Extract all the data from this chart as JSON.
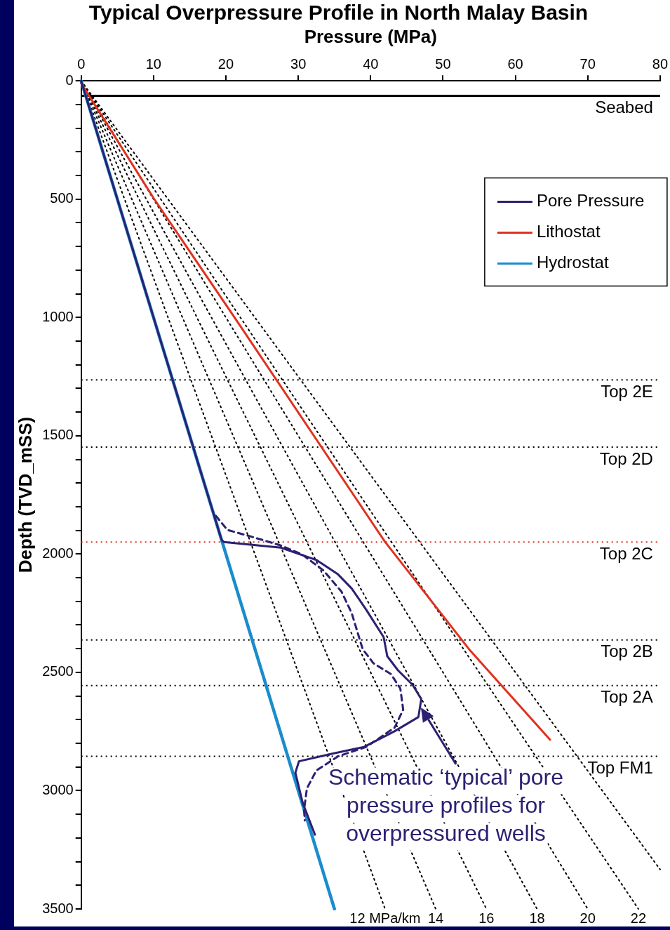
{
  "chart_data": {
    "type": "line",
    "title": "Typical Overpressure Profile in North Malay Basin",
    "xlabel": "Pressure (MPa)",
    "ylabel": "Depth (TVD_mSS)",
    "xlim": [
      0,
      80
    ],
    "xticks": [
      0,
      10,
      20,
      30,
      40,
      50,
      60,
      70,
      80
    ],
    "ylim": [
      3500,
      0
    ],
    "yticks": [
      0,
      {
        "value": 100,
        "label": null
      },
      {
        "value": 200,
        "label": null
      },
      {
        "value": 300,
        "label": null
      },
      {
        "value": 400,
        "label": null
      },
      500,
      {
        "value": 600,
        "label": null
      },
      {
        "value": 700,
        "label": null
      },
      {
        "value": 800,
        "label": null
      },
      {
        "value": 900,
        "label": null
      },
      1000,
      {
        "value": 1100,
        "label": null
      },
      {
        "value": 1200,
        "label": null
      },
      {
        "value": 1300,
        "label": null
      },
      {
        "value": 1400,
        "label": null
      },
      1500,
      {
        "value": 1600,
        "label": null
      },
      {
        "value": 1700,
        "label": null
      },
      {
        "value": 1800,
        "label": null
      },
      {
        "value": 1900,
        "label": null
      },
      2000,
      {
        "value": 2100,
        "label": null
      },
      {
        "value": 2200,
        "label": null
      },
      {
        "value": 2300,
        "label": null
      },
      {
        "value": 2400,
        "label": null
      },
      2500,
      {
        "value": 2600,
        "label": null
      },
      {
        "value": 2700,
        "label": null
      },
      {
        "value": 2800,
        "label": null
      },
      {
        "value": 2900,
        "label": null
      },
      3000,
      {
        "value": 3100,
        "label": null
      },
      {
        "value": 3200,
        "label": null
      },
      {
        "value": 3300,
        "label": null
      },
      {
        "value": 3400,
        "label": null
      },
      3500
    ],
    "grid": false,
    "legend": "top right",
    "marker": "none",
    "series": [
      {
        "name": "Pore Pressure",
        "color": "#2b2172",
        "line_style": "solid",
        "x": [
          0,
          19.4,
          19.7,
          27.6,
          32.5,
          35.5,
          37.4,
          39.4,
          41.8,
          42.3,
          43.8,
          45.8,
          47.0,
          46.6,
          43.3,
          39.1,
          34.5,
          30.1,
          29.6,
          30.6,
          32.3
        ],
        "values": [
          0,
          1940,
          1949,
          1973,
          2025,
          2086,
          2146,
          2236,
          2351,
          2432,
          2492,
          2553,
          2613,
          2689,
          2749,
          2815,
          2845,
          2876,
          2924,
          3051,
          3186
        ]
      },
      {
        "color": "#2b2172",
        "line_style": "dashed",
        "x": [
          18.6,
          20.2,
          23.7,
          27.6,
          30.5,
          33.5,
          36.0,
          37.4,
          38.9,
          40.4,
          42.8,
          44.1,
          44.5,
          43.3,
          39.4,
          35.5,
          32.5,
          31.2,
          30.8,
          30.9
        ],
        "values": [
          1838,
          1898,
          1928,
          1964,
          2001,
          2070,
          2160,
          2251,
          2402,
          2462,
          2507,
          2568,
          2658,
          2734,
          2815,
          2855,
          2915,
          2990,
          3081,
          3126
        ]
      },
      {
        "name": "Lithostat",
        "color": "#e0321e",
        "line_style": "solid",
        "x": [
          0,
          10.1,
          21.2,
          42.0,
          53.6,
          64.8
        ],
        "values": [
          10,
          500,
          1000,
          1949,
          2402,
          2785
        ]
      },
      {
        "name": "Hydrostat",
        "color": "#1a8ccc",
        "line_style": "solid",
        "x": [
          0,
          35
        ],
        "values": [
          0,
          3500
        ]
      },
      {
        "color": "#000000",
        "line_style": "dotted",
        "x": [
          0,
          42
        ],
        "values": [
          0,
          3500
        ]
      },
      {
        "color": "#000000",
        "line_style": "dotted",
        "x": [
          0,
          49
        ],
        "values": [
          0,
          3500
        ]
      },
      {
        "color": "#000000",
        "line_style": "dotted",
        "x": [
          0,
          56
        ],
        "values": [
          0,
          3500
        ]
      },
      {
        "color": "#000000",
        "line_style": "dotted",
        "x": [
          0,
          63
        ],
        "values": [
          0,
          3500
        ]
      },
      {
        "color": "#000000",
        "line_style": "dotted",
        "x": [
          0,
          70
        ],
        "values": [
          0,
          3500
        ]
      },
      {
        "color": "#000000",
        "line_style": "dotted",
        "x": [
          0,
          77
        ],
        "values": [
          0,
          3500
        ]
      },
      {
        "color": "#000000",
        "line_style": "dotted",
        "x": [
          0,
          80
        ],
        "values": [
          0,
          3333
        ]
      }
    ],
    "ref_lines": [
      {
        "axis": "y",
        "value": 63,
        "label": "Seabed",
        "color": "#000000",
        "line_style": "solid"
      },
      {
        "axis": "y",
        "value": 1264,
        "label": "Top 2E",
        "color": "#000000",
        "line_style": "dotted"
      },
      {
        "axis": "y",
        "value": 1548,
        "label": "Top 2D",
        "color": "#000000",
        "line_style": "dotted"
      },
      {
        "axis": "y",
        "value": 1949,
        "label": "Top 2C",
        "color": "#e0321e",
        "line_style": "dotted"
      },
      {
        "axis": "y",
        "value": 2363,
        "label": "Top 2B",
        "color": "#000000",
        "line_style": "dotted"
      },
      {
        "axis": "y",
        "value": 2556,
        "label": "Top 2A",
        "color": "#000000",
        "line_style": "dotted"
      },
      {
        "axis": "y",
        "value": 2855,
        "label": "Top FM1",
        "color": "#000000",
        "line_style": "dotted"
      }
    ],
    "annotations": [
      {
        "text": "12 MPa/km",
        "x": 42,
        "y": 3500
      },
      {
        "text": "14",
        "x": 49,
        "y": 3500
      },
      {
        "text": "16",
        "x": 56,
        "y": 3500
      },
      {
        "text": "18",
        "x": 63,
        "y": 3500
      },
      {
        "text": "20",
        "x": 70,
        "y": 3500
      },
      {
        "text": "22",
        "x": 77,
        "y": 3500
      },
      {
        "text": "Schematic ‘typical’ pore pressure profiles for overpressured wells",
        "x": 47,
        "y": 2650
      }
    ]
  }
}
